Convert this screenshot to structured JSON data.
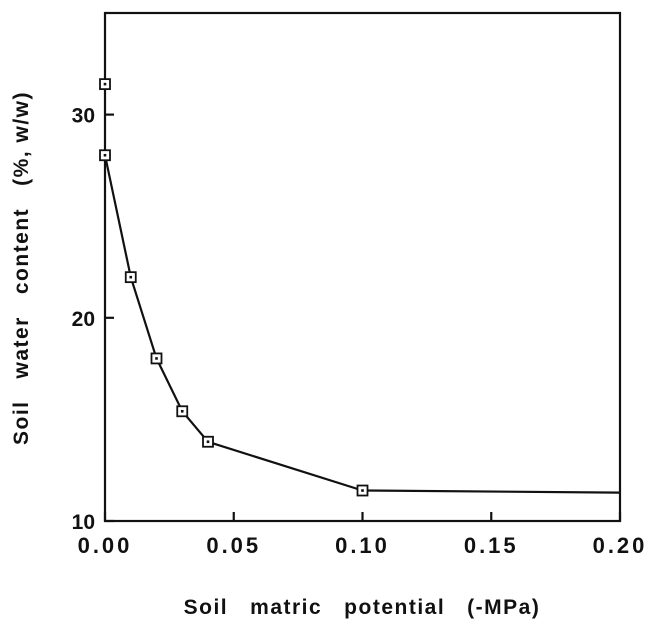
{
  "chart_data": {
    "type": "line",
    "title": "",
    "xlabel": "Soil   matric   potential   (-MPa)",
    "ylabel": "Soil   water   content   (%, w/w)",
    "xlim": [
      0,
      0.2
    ],
    "ylim": [
      10,
      35
    ],
    "x_ticks": [
      {
        "value": 0.0,
        "label": "0.00"
      },
      {
        "value": 0.05,
        "label": "0.05"
      },
      {
        "value": 0.1,
        "label": "0.10"
      },
      {
        "value": 0.15,
        "label": "0.15"
      },
      {
        "value": 0.2,
        "label": "0.20"
      }
    ],
    "y_ticks": [
      {
        "value": 10,
        "label": "10"
      },
      {
        "value": 20,
        "label": "20"
      },
      {
        "value": 30,
        "label": "30"
      }
    ],
    "grid": false,
    "marker": "square-with-dot",
    "line_color": "#111111",
    "series": [
      {
        "points": [
          {
            "x": 0.0,
            "y": 31.5
          },
          {
            "x": 0.0,
            "y": 28.0
          },
          {
            "x": 0.01,
            "y": 22.0
          },
          {
            "x": 0.02,
            "y": 18.0
          },
          {
            "x": 0.03,
            "y": 15.4
          },
          {
            "x": 0.04,
            "y": 13.9
          },
          {
            "x": 0.1,
            "y": 11.5
          }
        ],
        "line_points": [
          {
            "x": 0.0,
            "y": 28.0
          },
          {
            "x": 0.01,
            "y": 22.0
          },
          {
            "x": 0.02,
            "y": 18.0
          },
          {
            "x": 0.03,
            "y": 15.4
          },
          {
            "x": 0.04,
            "y": 13.9
          },
          {
            "x": 0.1,
            "y": 11.5
          },
          {
            "x": 0.2,
            "y": 11.4
          }
        ]
      }
    ]
  }
}
